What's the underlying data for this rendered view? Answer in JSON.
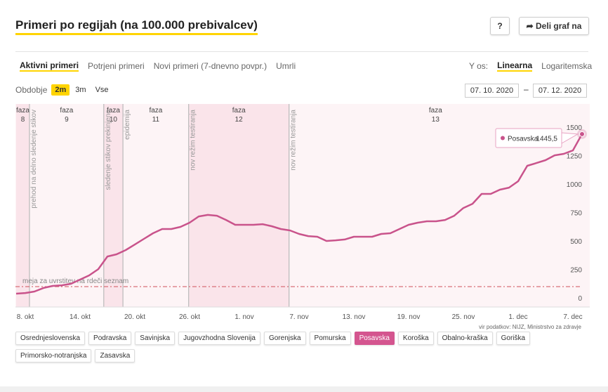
{
  "header": {
    "title": "Primeri po regijah (na 100.000 prebivalcev)",
    "help": "?",
    "share": "Deli graf na"
  },
  "tabs": {
    "items": [
      "Aktivni primeri",
      "Potrjeni primeri",
      "Novi primeri (7-dnevno povpr.)",
      "Umrli"
    ],
    "active": 0
  },
  "yaxis_toggle": {
    "label": "Y os:",
    "items": [
      "Linearna",
      "Logaritemska"
    ],
    "active": 0
  },
  "period": {
    "label": "Obdobje",
    "items": [
      "2m",
      "3m",
      "Vse"
    ],
    "active": 0,
    "from": "07. 10. 2020",
    "separator": "–",
    "to": "07. 12. 2020"
  },
  "chart_data": {
    "type": "line",
    "categories": [
      null,
      "8. okt",
      null,
      null,
      null,
      null,
      null,
      "14. okt",
      null,
      null,
      null,
      null,
      null,
      "20. okt",
      null,
      null,
      null,
      null,
      null,
      "26. okt",
      null,
      null,
      null,
      null,
      null,
      "1. nov",
      null,
      null,
      null,
      null,
      null,
      "7. nov",
      null,
      null,
      null,
      null,
      null,
      "13. nov",
      null,
      null,
      null,
      null,
      null,
      "19. nov",
      null,
      null,
      null,
      null,
      null,
      "25. nov",
      null,
      null,
      null,
      null,
      null,
      "1. dec",
      null,
      null,
      null,
      null,
      null,
      "7. dec",
      null
    ],
    "series": [
      {
        "name": "Posavska",
        "color": "#c9538b",
        "values": [
          43,
          49,
          62,
          93,
          111,
          117,
          130,
          167,
          204,
          259,
          370,
          389,
          426,
          475,
          525,
          574,
          611,
          611,
          630,
          667,
          722,
          735,
          728,
          691,
          648,
          648,
          648,
          654,
          636,
          611,
          599,
          568,
          549,
          543,
          506,
          512,
          519,
          543,
          543,
          543,
          568,
          574,
          611,
          648,
          667,
          679,
          679,
          691,
          728,
          796,
          833,
          920,
          920,
          957,
          975,
          1031,
          1167,
          1191,
          1216,
          1259,
          1272,
          1302,
          1445.5
        ]
      }
    ],
    "xlim": [
      0,
      62
    ],
    "ylim": [
      -74,
      1710
    ],
    "yticks": [
      0,
      250,
      500,
      750,
      1000,
      1250,
      1500
    ],
    "log_scale": false,
    "grid": false,
    "threshold": {
      "value": 105,
      "label": "meja za uvrstitev na rdeči seznam",
      "color": "#d0505a"
    },
    "phases": [
      {
        "name": "faza",
        "number": "8",
        "start": 0
      },
      {
        "name": "faza",
        "number": "9",
        "start": 1.46
      },
      {
        "name": "faza",
        "number": "10",
        "start": 9.6
      },
      {
        "name": "faza",
        "number": "11",
        "start": 11.7
      },
      {
        "name": "faza",
        "number": "12",
        "start": 18.9
      },
      {
        "name": "faza",
        "number": "13",
        "start": 29.9
      }
    ],
    "events": [
      {
        "x": 1.46,
        "label": "prehod na delno sledenje stikov"
      },
      {
        "x": 9.6,
        "label": "sledenje stikov prekinjeno"
      },
      {
        "x": 11.7,
        "label": "epidemija"
      },
      {
        "x": 18.9,
        "label": "nov režim testiranja"
      },
      {
        "x": 29.9,
        "label": "nov režim testiranja"
      }
    ],
    "tooltip": {
      "series": 0,
      "index": 62,
      "value_label": "1445,5"
    },
    "source": "vir podatkov: NIJZ, Ministrstvo za zdravje"
  },
  "regions": {
    "items": [
      "Osrednjeslovenska",
      "Podravska",
      "Savinjska",
      "Jugovzhodna Slovenija",
      "Gorenjska",
      "Pomurska",
      "Posavska",
      "Koroška",
      "Obalno-kraška",
      "Goriška",
      "Primorsko-notranjska",
      "Zasavska"
    ],
    "active": 6
  }
}
